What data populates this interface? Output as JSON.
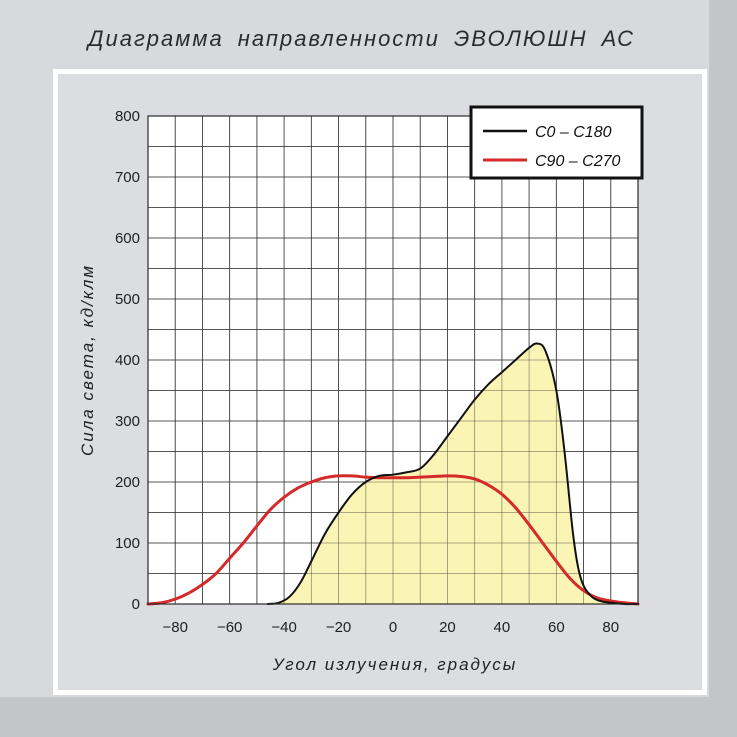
{
  "title": "Диаграмма  направленности  ЭВОЛЮШН АС",
  "chart_data": {
    "type": "area",
    "xlabel": "Угол излучения, градусы",
    "ylabel": "Сила света, кд/клм",
    "xlim": [
      -90,
      90
    ],
    "ylim": [
      0,
      800
    ],
    "x_ticks": [
      "-80",
      "-60",
      "-40",
      "-20",
      "0",
      "20",
      "40",
      "60",
      "80"
    ],
    "y_ticks": [
      "0",
      "100",
      "200",
      "300",
      "400",
      "500",
      "600",
      "700",
      "800"
    ],
    "grid": true,
    "legend_position": "top-right",
    "series": [
      {
        "name": "C0 – C180",
        "color": "#111111",
        "fill": "#fbf5b5",
        "points": [
          [
            -46,
            0
          ],
          [
            -42,
            2
          ],
          [
            -38,
            12
          ],
          [
            -34,
            35
          ],
          [
            -30,
            70
          ],
          [
            -25,
            115
          ],
          [
            -20,
            150
          ],
          [
            -15,
            180
          ],
          [
            -10,
            200
          ],
          [
            -5,
            210
          ],
          [
            0,
            212
          ],
          [
            5,
            216
          ],
          [
            10,
            222
          ],
          [
            15,
            245
          ],
          [
            20,
            275
          ],
          [
            25,
            305
          ],
          [
            30,
            335
          ],
          [
            35,
            360
          ],
          [
            40,
            380
          ],
          [
            45,
            400
          ],
          [
            50,
            420
          ],
          [
            53,
            427
          ],
          [
            56,
            415
          ],
          [
            60,
            350
          ],
          [
            63,
            250
          ],
          [
            66,
            120
          ],
          [
            68,
            60
          ],
          [
            70,
            30
          ],
          [
            73,
            12
          ],
          [
            76,
            5
          ],
          [
            80,
            2
          ],
          [
            85,
            0
          ],
          [
            90,
            0
          ]
        ]
      },
      {
        "name": "C90 – C270",
        "color": "#d42a2a",
        "points": [
          [
            -90,
            0
          ],
          [
            -85,
            2
          ],
          [
            -80,
            8
          ],
          [
            -75,
            18
          ],
          [
            -70,
            32
          ],
          [
            -65,
            50
          ],
          [
            -60,
            75
          ],
          [
            -55,
            100
          ],
          [
            -50,
            128
          ],
          [
            -45,
            155
          ],
          [
            -40,
            175
          ],
          [
            -35,
            190
          ],
          [
            -30,
            200
          ],
          [
            -25,
            207
          ],
          [
            -20,
            210
          ],
          [
            -15,
            210
          ],
          [
            -10,
            208
          ],
          [
            -5,
            207
          ],
          [
            0,
            207
          ],
          [
            5,
            207
          ],
          [
            10,
            208
          ],
          [
            15,
            209
          ],
          [
            20,
            210
          ],
          [
            25,
            209
          ],
          [
            30,
            205
          ],
          [
            35,
            195
          ],
          [
            40,
            180
          ],
          [
            45,
            158
          ],
          [
            50,
            130
          ],
          [
            55,
            100
          ],
          [
            60,
            70
          ],
          [
            65,
            42
          ],
          [
            70,
            22
          ],
          [
            75,
            10
          ],
          [
            80,
            5
          ],
          [
            85,
            2
          ],
          [
            90,
            0
          ]
        ]
      }
    ]
  }
}
